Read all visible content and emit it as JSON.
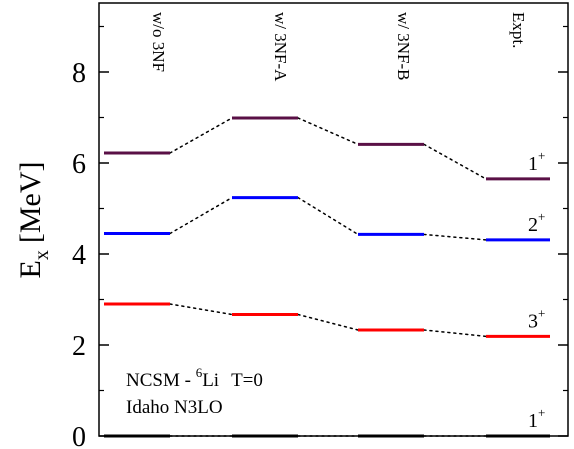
{
  "chart_data": {
    "type": "level-scheme",
    "ylabel": "E",
    "ylabel_sub": "x",
    "ylabel_unit": "[MeV]",
    "ylim": [
      0,
      9.5
    ],
    "yticks": [
      0,
      2,
      4,
      6,
      8
    ],
    "columns": [
      "w/o 3NF",
      "w/ 3NF-A",
      "w/ 3NF-B",
      "Expt."
    ],
    "states": [
      {
        "id": "1+ g.s.",
        "j": "1",
        "parity": "+",
        "color": "#000000",
        "values": [
          0.0,
          0.0,
          0.0,
          0.0
        ]
      },
      {
        "id": "3+",
        "j": "3",
        "parity": "+",
        "color": "#ff0000",
        "values": [
          2.9,
          2.67,
          2.33,
          2.19
        ]
      },
      {
        "id": "2+",
        "j": "2",
        "parity": "+",
        "color": "#0000ff",
        "values": [
          4.45,
          5.24,
          4.43,
          4.31
        ]
      },
      {
        "id": "1+",
        "j": "1",
        "parity": "+",
        "color": "#5a1046",
        "values": [
          6.22,
          6.99,
          6.41,
          5.65
        ]
      }
    ],
    "annotation": {
      "line1_prefix": "NCSM - ",
      "line1_isotope_mass": "6",
      "line1_element": "Li",
      "line1_suffix": "T=0",
      "line2": "Idaho N3LO"
    }
  }
}
